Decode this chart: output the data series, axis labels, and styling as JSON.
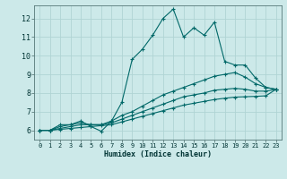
{
  "xlabel": "Humidex (Indice chaleur)",
  "xlim": [
    -0.5,
    23.5
  ],
  "ylim": [
    5.5,
    12.7
  ],
  "xticks": [
    0,
    1,
    2,
    3,
    4,
    5,
    6,
    7,
    8,
    9,
    10,
    11,
    12,
    13,
    14,
    15,
    16,
    17,
    18,
    19,
    20,
    21,
    22,
    23
  ],
  "yticks": [
    6,
    7,
    8,
    9,
    10,
    11,
    12
  ],
  "background_color": "#cce9e9",
  "plot_bg_color": "#cce9e9",
  "grid_color": "#b0d4d4",
  "line_color": "#006868",
  "lines": [
    {
      "x": [
        0,
        1,
        2,
        3,
        4,
        5,
        6,
        7,
        8,
        9,
        10,
        11,
        12,
        13,
        14,
        15,
        16,
        17,
        18,
        19,
        20,
        21,
        22,
        23
      ],
      "y": [
        6.0,
        6.0,
        6.3,
        6.3,
        6.5,
        6.2,
        5.95,
        6.5,
        7.5,
        9.8,
        10.35,
        11.1,
        12.0,
        12.5,
        11.0,
        11.5,
        11.1,
        11.8,
        9.7,
        9.5,
        9.5,
        8.8,
        8.3,
        8.2
      ]
    },
    {
      "x": [
        0,
        1,
        2,
        3,
        4,
        5,
        6,
        7,
        8,
        9,
        10,
        11,
        12,
        13,
        14,
        15,
        16,
        17,
        18,
        19,
        20,
        21,
        22,
        23
      ],
      "y": [
        6.0,
        6.0,
        6.2,
        6.3,
        6.4,
        6.3,
        6.3,
        6.5,
        6.8,
        7.0,
        7.3,
        7.6,
        7.9,
        8.1,
        8.3,
        8.5,
        8.7,
        8.9,
        9.0,
        9.1,
        8.85,
        8.5,
        8.3,
        8.2
      ]
    },
    {
      "x": [
        0,
        1,
        2,
        3,
        4,
        5,
        6,
        7,
        8,
        9,
        10,
        11,
        12,
        13,
        14,
        15,
        16,
        17,
        18,
        19,
        20,
        21,
        22,
        23
      ],
      "y": [
        6.0,
        6.0,
        6.1,
        6.2,
        6.3,
        6.3,
        6.3,
        6.4,
        6.6,
        6.8,
        7.0,
        7.2,
        7.4,
        7.6,
        7.8,
        7.9,
        8.0,
        8.15,
        8.2,
        8.25,
        8.2,
        8.1,
        8.1,
        8.2
      ]
    },
    {
      "x": [
        0,
        1,
        2,
        3,
        4,
        5,
        6,
        7,
        8,
        9,
        10,
        11,
        12,
        13,
        14,
        15,
        16,
        17,
        18,
        19,
        20,
        21,
        22,
        23
      ],
      "y": [
        6.0,
        6.0,
        6.05,
        6.1,
        6.15,
        6.2,
        6.25,
        6.3,
        6.45,
        6.6,
        6.75,
        6.9,
        7.05,
        7.2,
        7.35,
        7.45,
        7.55,
        7.65,
        7.72,
        7.78,
        7.8,
        7.82,
        7.85,
        8.2
      ]
    }
  ]
}
